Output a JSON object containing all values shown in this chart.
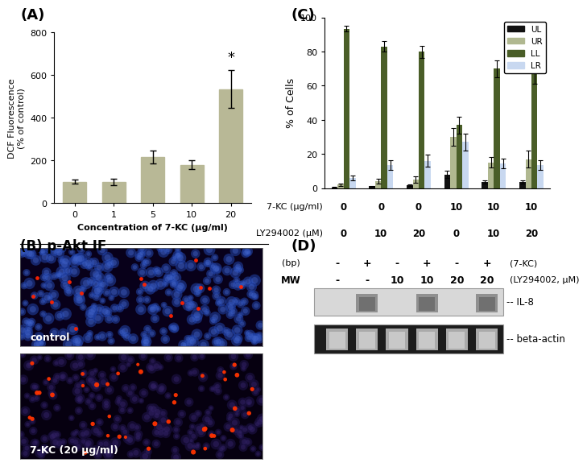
{
  "panel_A": {
    "label": "(A)",
    "bar_values": [
      100,
      100,
      215,
      180,
      535
    ],
    "bar_errors": [
      10,
      15,
      30,
      20,
      90
    ],
    "bar_color": "#b8b896",
    "x_labels": [
      "0",
      "1",
      "5",
      "10",
      "20"
    ],
    "xlabel": "Concentration of 7-KC (μg/ml)",
    "ylabel": "DCF Fluorescence\n(% of control)",
    "ylim": [
      0,
      800
    ],
    "yticks": [
      0,
      200,
      400,
      600,
      800
    ],
    "star_bar_index": 4,
    "star_text": "*"
  },
  "panel_B": {
    "label": "(B) p-Akt IF",
    "img1_label": "control",
    "img2_label": "7-KC (20 μg/ml)"
  },
  "panel_C": {
    "label": "(C)",
    "groups": [
      {
        "7KC": "0",
        "LY": "0",
        "UL": 0.5,
        "UR": 2.0,
        "LL": 93.5,
        "LR": 6.0,
        "UL_err": 0.2,
        "UR_err": 0.8,
        "LL_err": 1.5,
        "LR_err": 1.5
      },
      {
        "7KC": "0",
        "LY": "10",
        "UL": 1.0,
        "UR": 4.0,
        "LL": 83.0,
        "LR": 13.5,
        "UL_err": 0.3,
        "UR_err": 1.5,
        "LL_err": 3.0,
        "LR_err": 3.0
      },
      {
        "7KC": "0",
        "LY": "20",
        "UL": 1.5,
        "UR": 5.0,
        "LL": 80.0,
        "LR": 16.0,
        "UL_err": 0.5,
        "UR_err": 2.0,
        "LL_err": 3.5,
        "LR_err": 3.5
      },
      {
        "7KC": "10",
        "LY": "0",
        "UL": 8.0,
        "UR": 30.0,
        "LL": 37.0,
        "LR": 27.0,
        "UL_err": 2.0,
        "UR_err": 5.0,
        "LL_err": 5.0,
        "LR_err": 5.0
      },
      {
        "7KC": "10",
        "LY": "10",
        "UL": 3.5,
        "UR": 15.0,
        "LL": 70.0,
        "LR": 14.5,
        "UL_err": 1.0,
        "UR_err": 3.0,
        "LL_err": 5.0,
        "LR_err": 3.0
      },
      {
        "7KC": "10",
        "LY": "20",
        "UL": 3.5,
        "UR": 17.0,
        "LL": 67.0,
        "LR": 13.5,
        "UL_err": 1.0,
        "UR_err": 5.0,
        "LL_err": 6.0,
        "LR_err": 3.0
      }
    ],
    "colors": {
      "UL": "#111111",
      "UR": "#b0b890",
      "LL": "#4a5e28",
      "LR": "#c8d8f0"
    },
    "legend_labels": [
      "UL",
      "UR",
      "LL",
      "LR"
    ],
    "ylabel": "% of Cells",
    "ylim": [
      0,
      100
    ],
    "yticks": [
      0,
      20,
      40,
      60,
      80,
      100
    ],
    "xlabel_7KC": "7-KC (μg/ml)",
    "xlabel_LY": "LY294002 (μM)"
  },
  "panel_D": {
    "label": "(D)",
    "row_labels": [
      "-- IL-8",
      "-- beta-actin"
    ],
    "col_header_7KC": "(7-KC)",
    "col_header_LY": "(LY294002, μM)",
    "col_signs_7KC": [
      "-",
      "+",
      "-",
      "+",
      "-",
      "+"
    ],
    "col_signs_LY": [
      "-",
      "-",
      "10",
      "10",
      "20",
      "20"
    ],
    "bp_label": "(bp)",
    "mw_label": "MW"
  },
  "background_color": "#ffffff",
  "figure_width": 7.0,
  "figure_height": 6.23
}
